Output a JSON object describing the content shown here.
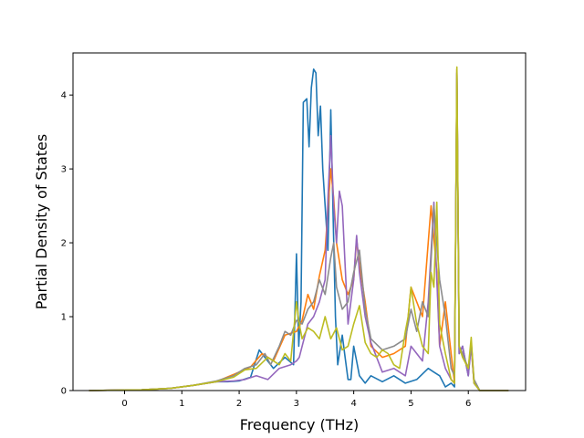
{
  "chart_data": {
    "type": "line",
    "title": "",
    "xlabel": "Frequency (THz)",
    "ylabel": "Partial Density of States",
    "xlim": [
      -0.9,
      7.0
    ],
    "ylim": [
      0,
      4.57
    ],
    "xticks": [
      0,
      1,
      2,
      3,
      4,
      5,
      6
    ],
    "yticks": [
      0,
      1,
      2,
      3,
      4
    ],
    "grid": false,
    "legend": "none",
    "series": [
      {
        "color": "#1f77b4",
        "x": [
          -0.62,
          0.3,
          0.8,
          1.2,
          1.6,
          1.8,
          2.0,
          2.2,
          2.35,
          2.45,
          2.6,
          2.8,
          2.95,
          3.0,
          3.04,
          3.08,
          3.12,
          3.18,
          3.22,
          3.26,
          3.3,
          3.34,
          3.38,
          3.42,
          3.46,
          3.5,
          3.55,
          3.6,
          3.64,
          3.68,
          3.72,
          3.76,
          3.8,
          3.85,
          3.9,
          3.95,
          4.0,
          4.05,
          4.1,
          4.2,
          4.3,
          4.5,
          4.7,
          4.9,
          5.1,
          5.3,
          5.4,
          5.5,
          5.6,
          5.7,
          5.76,
          5.8,
          5.84,
          5.9,
          6.0,
          6.05,
          6.1,
          6.2,
          6.7
        ],
        "y": [
          0.0,
          0.01,
          0.03,
          0.07,
          0.12,
          0.12,
          0.13,
          0.18,
          0.55,
          0.45,
          0.3,
          0.45,
          0.35,
          1.85,
          0.6,
          1.2,
          3.9,
          3.95,
          3.3,
          4.1,
          4.35,
          4.3,
          3.45,
          3.85,
          3.0,
          2.5,
          1.9,
          3.8,
          2.4,
          1.0,
          0.35,
          0.55,
          0.75,
          0.45,
          0.15,
          0.15,
          0.6,
          0.4,
          0.2,
          0.1,
          0.2,
          0.12,
          0.2,
          0.1,
          0.15,
          0.3,
          0.25,
          0.2,
          0.05,
          0.1,
          0.05,
          4.3,
          0.5,
          0.6,
          0.2,
          0.65,
          0.1,
          0.0,
          0.0
        ]
      },
      {
        "color": "#ff7f0e",
        "x": [
          -0.62,
          0.3,
          0.8,
          1.2,
          1.6,
          2.0,
          2.2,
          2.4,
          2.6,
          2.8,
          3.0,
          3.1,
          3.2,
          3.3,
          3.4,
          3.5,
          3.6,
          3.65,
          3.7,
          3.8,
          3.9,
          4.0,
          4.05,
          4.1,
          4.2,
          4.3,
          4.5,
          4.7,
          4.9,
          5.0,
          5.2,
          5.35,
          5.45,
          5.5,
          5.6,
          5.7,
          5.76,
          5.8,
          5.84,
          5.9,
          6.0,
          6.05,
          6.1,
          6.2,
          6.7
        ],
        "y": [
          0.0,
          0.01,
          0.03,
          0.07,
          0.12,
          0.25,
          0.32,
          0.5,
          0.4,
          0.75,
          0.8,
          0.95,
          1.3,
          1.1,
          1.55,
          1.9,
          3.0,
          2.6,
          2.0,
          1.5,
          1.3,
          1.5,
          2.05,
          1.7,
          1.2,
          0.6,
          0.45,
          0.5,
          0.6,
          1.4,
          1.0,
          2.5,
          1.6,
          0.6,
          1.2,
          0.5,
          0.1,
          4.35,
          0.6,
          0.5,
          0.3,
          0.6,
          0.1,
          0.0,
          0.0
        ]
      },
      {
        "color": "#9467bd",
        "x": [
          -0.62,
          0.3,
          0.8,
          1.2,
          1.6,
          1.9,
          2.1,
          2.3,
          2.5,
          2.7,
          2.9,
          3.0,
          3.05,
          3.1,
          3.2,
          3.3,
          3.4,
          3.5,
          3.55,
          3.6,
          3.65,
          3.7,
          3.75,
          3.8,
          3.85,
          3.9,
          4.0,
          4.05,
          4.1,
          4.2,
          4.3,
          4.5,
          4.7,
          4.9,
          5.0,
          5.1,
          5.2,
          5.3,
          5.4,
          5.45,
          5.5,
          5.6,
          5.7,
          5.76,
          5.8,
          5.84,
          5.9,
          6.0,
          6.05,
          6.1,
          6.2,
          6.7
        ],
        "y": [
          0.0,
          0.01,
          0.03,
          0.07,
          0.12,
          0.13,
          0.15,
          0.2,
          0.15,
          0.3,
          0.35,
          0.4,
          0.45,
          0.6,
          0.9,
          1.0,
          1.2,
          1.5,
          2.6,
          3.45,
          2.5,
          2.0,
          2.7,
          2.5,
          1.7,
          0.9,
          1.5,
          2.1,
          1.6,
          1.0,
          0.65,
          0.25,
          0.3,
          0.2,
          0.6,
          0.5,
          0.4,
          1.2,
          2.55,
          1.5,
          0.6,
          0.3,
          0.15,
          0.1,
          4.3,
          0.5,
          0.6,
          0.2,
          0.6,
          0.1,
          0.0,
          0.0
        ]
      },
      {
        "color": "#8c8c8c",
        "x": [
          -0.62,
          0.3,
          0.8,
          1.2,
          1.6,
          1.9,
          2.1,
          2.3,
          2.45,
          2.55,
          2.7,
          2.8,
          2.9,
          3.0,
          3.1,
          3.2,
          3.3,
          3.4,
          3.5,
          3.6,
          3.65,
          3.7,
          3.8,
          3.9,
          4.0,
          4.1,
          4.2,
          4.3,
          4.5,
          4.7,
          4.9,
          5.0,
          5.1,
          5.2,
          5.3,
          5.4,
          5.5,
          5.6,
          5.7,
          5.76,
          5.8,
          5.84,
          5.9,
          6.0,
          6.05,
          6.1,
          6.2,
          6.7
        ],
        "y": [
          0.0,
          0.01,
          0.03,
          0.07,
          0.13,
          0.2,
          0.3,
          0.35,
          0.5,
          0.35,
          0.6,
          0.8,
          0.75,
          0.95,
          0.9,
          1.1,
          1.2,
          1.5,
          1.3,
          1.8,
          2.0,
          1.4,
          1.1,
          1.2,
          1.6,
          1.9,
          1.1,
          0.7,
          0.55,
          0.6,
          0.7,
          1.1,
          0.8,
          1.2,
          1.0,
          2.5,
          1.5,
          1.0,
          0.3,
          0.2,
          4.35,
          0.6,
          0.5,
          0.3,
          0.65,
          0.15,
          0.0,
          0.0
        ]
      },
      {
        "color": "#bcbd22",
        "x": [
          -0.62,
          0.3,
          0.8,
          1.2,
          1.6,
          1.9,
          2.1,
          2.3,
          2.5,
          2.6,
          2.7,
          2.8,
          2.9,
          3.0,
          3.05,
          3.1,
          3.2,
          3.3,
          3.4,
          3.5,
          3.6,
          3.7,
          3.8,
          3.9,
          4.0,
          4.1,
          4.2,
          4.3,
          4.4,
          4.5,
          4.6,
          4.7,
          4.8,
          4.9,
          4.95,
          5.0,
          5.1,
          5.2,
          5.3,
          5.35,
          5.4,
          5.45,
          5.5,
          5.6,
          5.7,
          5.76,
          5.8,
          5.84,
          5.9,
          6.0,
          6.05,
          6.1,
          6.2,
          6.7
        ],
        "y": [
          0.0,
          0.01,
          0.03,
          0.07,
          0.12,
          0.18,
          0.28,
          0.3,
          0.45,
          0.4,
          0.35,
          0.5,
          0.4,
          1.2,
          0.9,
          0.7,
          0.85,
          0.8,
          0.7,
          1.0,
          0.7,
          0.85,
          0.55,
          0.6,
          0.9,
          1.15,
          0.65,
          0.5,
          0.45,
          0.55,
          0.5,
          0.35,
          0.3,
          0.8,
          1.0,
          1.4,
          0.9,
          0.6,
          0.5,
          1.6,
          1.4,
          2.55,
          0.9,
          0.5,
          0.15,
          0.1,
          4.38,
          0.6,
          0.45,
          0.3,
          0.72,
          0.1,
          0.0,
          0.0
        ]
      }
    ]
  }
}
